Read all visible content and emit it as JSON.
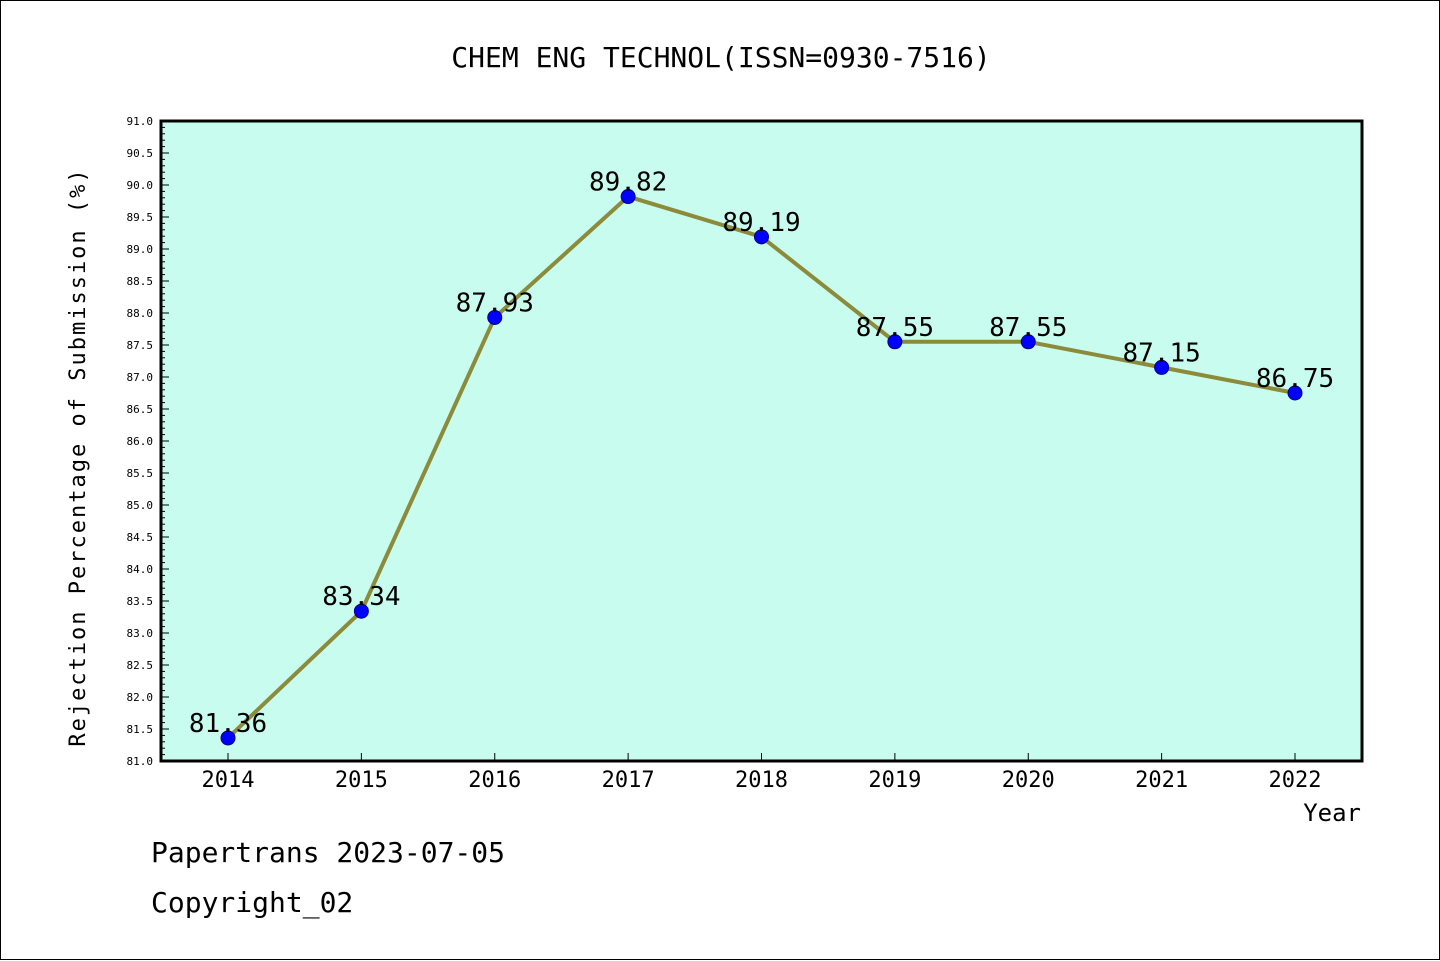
{
  "chart_data": {
    "type": "line",
    "title": "CHEM ENG TECHNOL(ISSN=0930-7516)",
    "xlabel": "Year",
    "ylabel": "Rejection Percentage of Submission (%)",
    "x": [
      "2014",
      "2015",
      "2016",
      "2017",
      "2018",
      "2019",
      "2020",
      "2021",
      "2022"
    ],
    "series": [
      {
        "values": [
          81.36,
          83.34,
          87.93,
          89.82,
          89.19,
          87.55,
          87.55,
          87.15,
          86.75
        ],
        "labels": [
          "81.36",
          "83.34",
          "87.93",
          "89.82",
          "89.19",
          "87.55",
          "87.55",
          "87.15",
          "86.75"
        ],
        "line_color": "#8B8B3A",
        "marker_color": "#0000FF"
      }
    ],
    "ylim": [
      81.0,
      91.0
    ],
    "ytick_step": 0.5,
    "ytick_labels": [
      "81.0",
      "81.5",
      "82.0",
      "82.5",
      "83.0",
      "83.5",
      "84.0",
      "84.5",
      "85.0",
      "85.5",
      "86.0",
      "86.5",
      "87.0",
      "87.5",
      "88.0",
      "88.5",
      "89.0",
      "89.5",
      "90.0",
      "90.5",
      "91.0"
    ],
    "plot_background": "#C8FCEF",
    "grid": false,
    "legend": "none"
  },
  "footer": {
    "date_line": "Papertrans 2023-07-05",
    "copyright_line": "Copyright_02"
  }
}
